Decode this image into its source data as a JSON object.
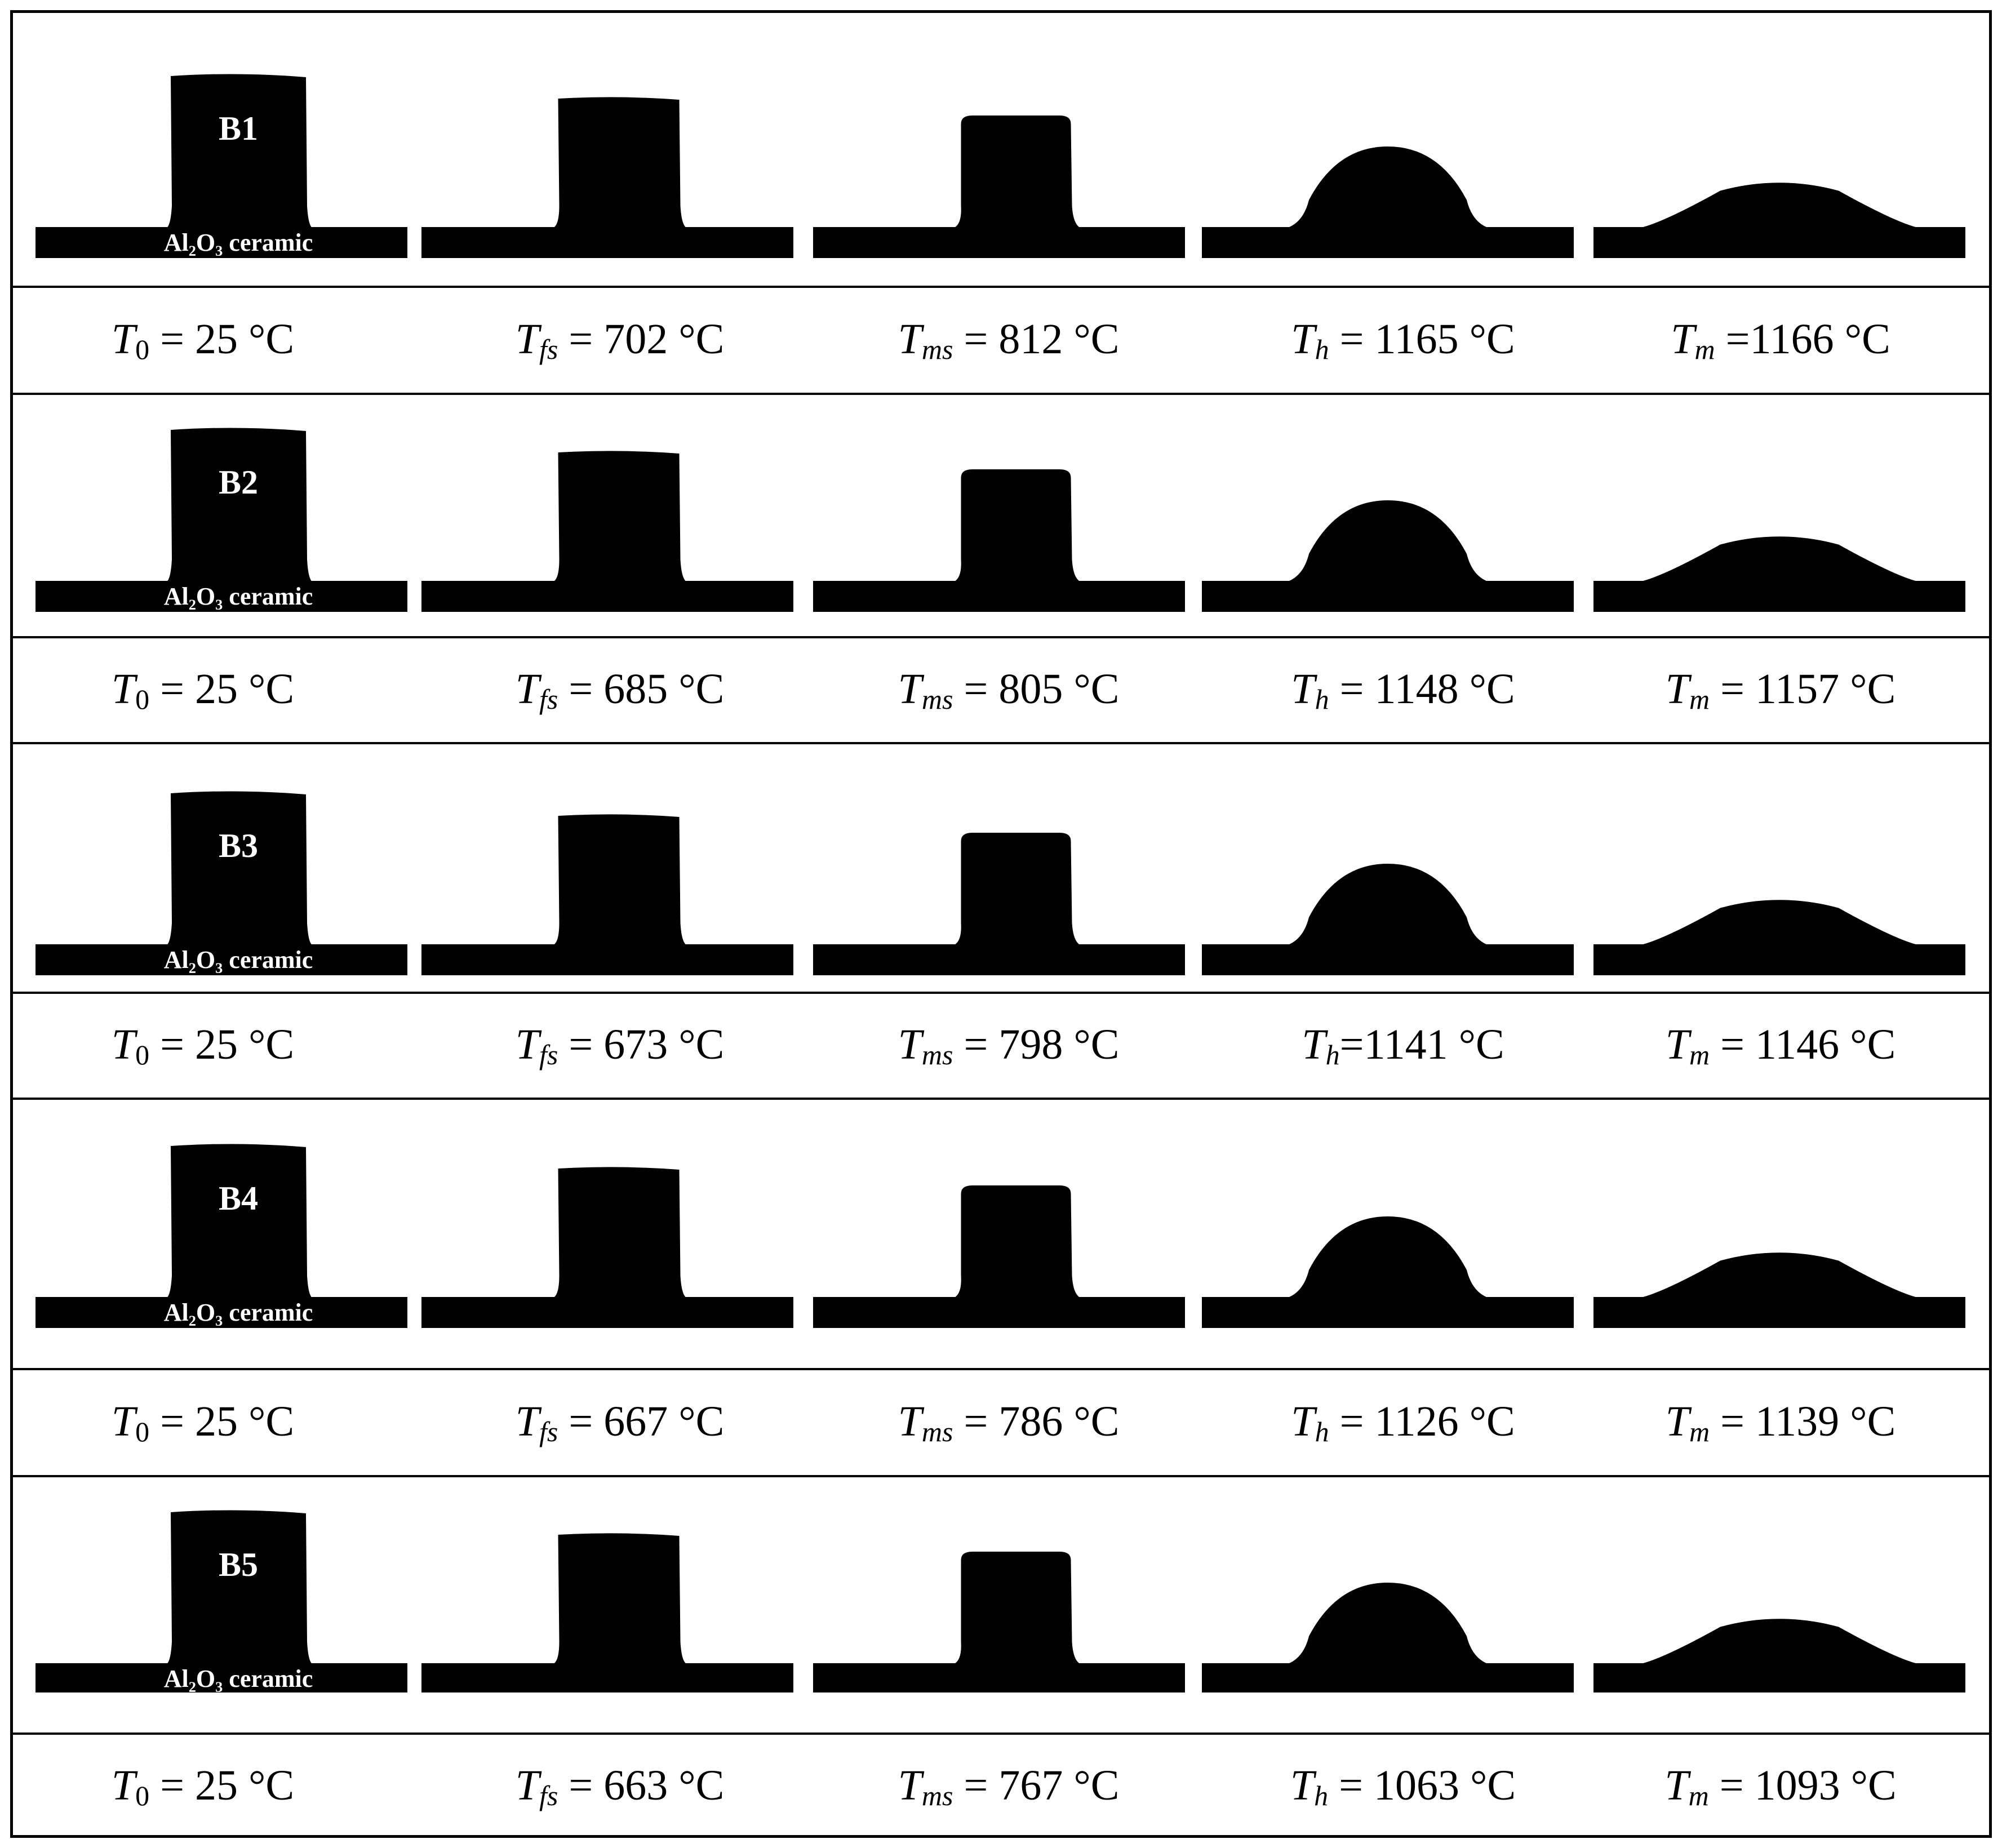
{
  "figure": {
    "substrate_label": "Al₂O₃ ceramic",
    "rows": [
      {
        "sample": "B1",
        "temperatures": [
          {
            "symbol": "T",
            "sub": "0",
            "sep": " = ",
            "value": "25 °C",
            "sub_italic": false
          },
          {
            "symbol": "T",
            "sub": "fs",
            "sep": " = ",
            "value": "702 °C",
            "sub_italic": true
          },
          {
            "symbol": "T",
            "sub": "ms",
            "sep": " = ",
            "value": "812 °C",
            "sub_italic": true
          },
          {
            "symbol": "T",
            "sub": "h",
            "sep": " = ",
            "value": "1165 °C",
            "sub_italic": true
          },
          {
            "symbol": "T",
            "sub": "m",
            "sep": " =",
            "value": "1166 °C",
            "sub_italic": true
          }
        ]
      },
      {
        "sample": "B2",
        "temperatures": [
          {
            "symbol": "T",
            "sub": "0",
            "sep": " = ",
            "value": "25 °C",
            "sub_italic": false
          },
          {
            "symbol": "T",
            "sub": "fs",
            "sep": " = ",
            "value": "685 °C",
            "sub_italic": true
          },
          {
            "symbol": "T",
            "sub": "ms",
            "sep": " = ",
            "value": "805 °C",
            "sub_italic": true
          },
          {
            "symbol": "T",
            "sub": "h",
            "sep": " = ",
            "value": "1148 °C",
            "sub_italic": true
          },
          {
            "symbol": "T",
            "sub": "m",
            "sep": " = ",
            "value": "1157 °C",
            "sub_italic": true
          }
        ]
      },
      {
        "sample": "B3",
        "temperatures": [
          {
            "symbol": "T",
            "sub": "0",
            "sep": " = ",
            "value": "25 °C",
            "sub_italic": false
          },
          {
            "symbol": "T",
            "sub": "fs",
            "sep": " = ",
            "value": "673 °C",
            "sub_italic": true
          },
          {
            "symbol": "T",
            "sub": "ms",
            "sep": " = ",
            "value": "798 °C",
            "sub_italic": true
          },
          {
            "symbol": "T",
            "sub": "h",
            "sep": "=",
            "value": "1141 °C",
            "sub_italic": true
          },
          {
            "symbol": "T",
            "sub": "m",
            "sep": " = ",
            "value": "1146 °C",
            "sub_italic": true
          }
        ]
      },
      {
        "sample": "B4",
        "temperatures": [
          {
            "symbol": "T",
            "sub": "0",
            "sep": " = ",
            "value": "25 °C",
            "sub_italic": false
          },
          {
            "symbol": "T",
            "sub": "fs",
            "sep": " = ",
            "value": "667 °C",
            "sub_italic": true
          },
          {
            "symbol": "T",
            "sub": "ms",
            "sep": " = ",
            "value": "786 °C",
            "sub_italic": true
          },
          {
            "symbol": "T",
            "sub": "h",
            "sep": " = ",
            "value": "1126 °C",
            "sub_italic": true
          },
          {
            "symbol": "T",
            "sub": "m",
            "sep": " = ",
            "value": "1139 °C",
            "sub_italic": true
          }
        ]
      },
      {
        "sample": "B5",
        "temperatures": [
          {
            "symbol": "T",
            "sub": "0",
            "sep": " = ",
            "value": "25 °C",
            "sub_italic": false
          },
          {
            "symbol": "T",
            "sub": "fs",
            "sep": " = ",
            "value": "663 °C",
            "sub_italic": true
          },
          {
            "symbol": "T",
            "sub": "ms",
            "sep": " = ",
            "value": "767 °C",
            "sub_italic": true
          },
          {
            "symbol": "T",
            "sub": "h",
            "sep": " = ",
            "value": "1063 °C",
            "sub_italic": true
          },
          {
            "symbol": "T",
            "sub": "m",
            "sep": " = ",
            "value": "1093 °C",
            "sub_italic": true
          }
        ]
      }
    ]
  }
}
